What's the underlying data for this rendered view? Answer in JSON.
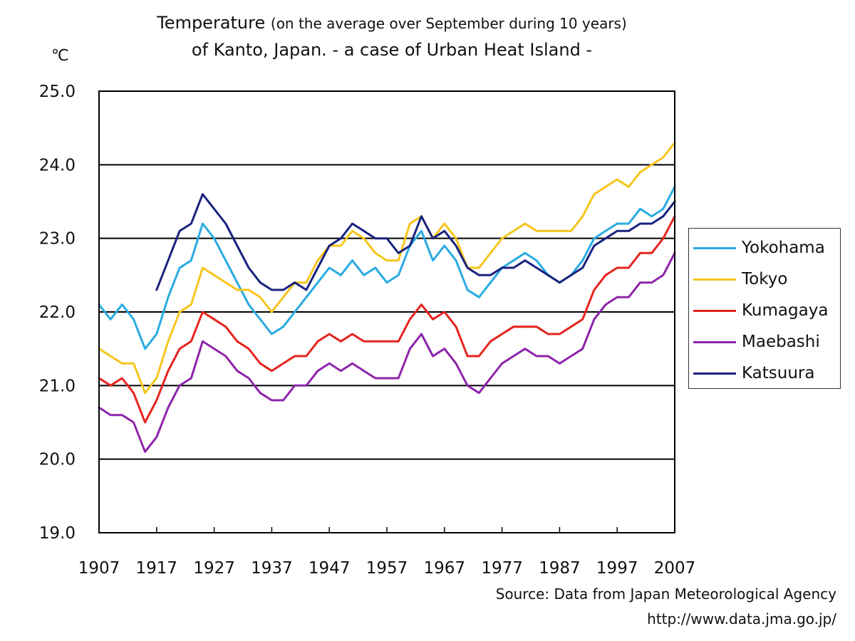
{
  "title": {
    "main": "Temperature",
    "subtitle": "(on the average over September during 10 years)",
    "line2": "of Kanto, Japan. - a case of Urban Heat Island -"
  },
  "unit_label": "℃",
  "source": {
    "line1": "Source: Data from Japan Meteorological Agency",
    "line2": "http://www.data.jma.go.jp/"
  },
  "chart_data": {
    "type": "line",
    "xlim": [
      1907,
      2007
    ],
    "ylim": [
      19.0,
      25.0
    ],
    "x_ticks": [
      1907,
      1917,
      1927,
      1937,
      1947,
      1957,
      1967,
      1977,
      1987,
      1997,
      2007
    ],
    "y_ticks": [
      "19.0",
      "20.0",
      "21.0",
      "22.0",
      "23.0",
      "24.0",
      "25.0"
    ],
    "grid": "horizontal",
    "legend_position": "right",
    "series": [
      {
        "name": "Yokohama",
        "color": "#29abe2",
        "x": [
          1907,
          1909,
          1911,
          1913,
          1915,
          1917,
          1919,
          1921,
          1923,
          1925,
          1927,
          1929,
          1931,
          1933,
          1935,
          1937,
          1939,
          1941,
          1943,
          1945,
          1947,
          1949,
          1951,
          1953,
          1955,
          1957,
          1959,
          1961,
          1963,
          1965,
          1967,
          1969,
          1971,
          1973,
          1975,
          1977,
          1979,
          1981,
          1983,
          1985,
          1987,
          1989,
          1991,
          1993,
          1995,
          1997,
          1999,
          2001,
          2003,
          2005,
          2007
        ],
        "values": [
          22.1,
          21.9,
          22.1,
          21.9,
          21.5,
          21.7,
          22.2,
          22.6,
          22.7,
          23.2,
          23.0,
          22.7,
          22.4,
          22.1,
          21.9,
          21.7,
          21.8,
          22.0,
          22.2,
          22.4,
          22.6,
          22.5,
          22.7,
          22.5,
          22.6,
          22.4,
          22.5,
          22.9,
          23.1,
          22.7,
          22.9,
          22.7,
          22.3,
          22.2,
          22.4,
          22.6,
          22.7,
          22.8,
          22.7,
          22.5,
          22.4,
          22.5,
          22.7,
          23.0,
          23.1,
          23.2,
          23.2,
          23.4,
          23.3,
          23.4,
          23.7
        ]
      },
      {
        "name": "Tokyo",
        "color": "#f6c51c",
        "x": [
          1907,
          1909,
          1911,
          1913,
          1915,
          1917,
          1919,
          1921,
          1923,
          1925,
          1927,
          1929,
          1931,
          1933,
          1935,
          1937,
          1939,
          1941,
          1943,
          1945,
          1947,
          1949,
          1951,
          1953,
          1955,
          1957,
          1959,
          1961,
          1963,
          1965,
          1967,
          1969,
          1971,
          1973,
          1975,
          1977,
          1979,
          1981,
          1983,
          1985,
          1987,
          1989,
          1991,
          1993,
          1995,
          1997,
          1999,
          2001,
          2003,
          2005,
          2007
        ],
        "values": [
          21.5,
          21.4,
          21.3,
          21.3,
          20.9,
          21.1,
          21.6,
          22.0,
          22.1,
          22.6,
          22.5,
          22.4,
          22.3,
          22.3,
          22.2,
          22.0,
          22.2,
          22.4,
          22.4,
          22.7,
          22.9,
          22.9,
          23.1,
          23.0,
          22.8,
          22.7,
          22.7,
          23.2,
          23.3,
          23.0,
          23.2,
          23.0,
          22.6,
          22.6,
          22.8,
          23.0,
          23.1,
          23.2,
          23.1,
          23.1,
          23.1,
          23.1,
          23.3,
          23.6,
          23.7,
          23.8,
          23.7,
          23.9,
          24.0,
          24.1,
          24.3
        ]
      },
      {
        "name": "Kumagaya",
        "color": "#e6231e",
        "x": [
          1907,
          1909,
          1911,
          1913,
          1915,
          1917,
          1919,
          1921,
          1923,
          1925,
          1927,
          1929,
          1931,
          1933,
          1935,
          1937,
          1939,
          1941,
          1943,
          1945,
          1947,
          1949,
          1951,
          1953,
          1955,
          1957,
          1959,
          1961,
          1963,
          1965,
          1967,
          1969,
          1971,
          1973,
          1975,
          1977,
          1979,
          1981,
          1983,
          1985,
          1987,
          1989,
          1991,
          1993,
          1995,
          1997,
          1999,
          2001,
          2003,
          2005,
          2007
        ],
        "values": [
          21.1,
          21.0,
          21.1,
          20.9,
          20.5,
          20.8,
          21.2,
          21.5,
          21.6,
          22.0,
          21.9,
          21.8,
          21.6,
          21.5,
          21.3,
          21.2,
          21.3,
          21.4,
          21.4,
          21.6,
          21.7,
          21.6,
          21.7,
          21.6,
          21.6,
          21.6,
          21.6,
          21.9,
          22.1,
          21.9,
          22.0,
          21.8,
          21.4,
          21.4,
          21.6,
          21.7,
          21.8,
          21.8,
          21.8,
          21.7,
          21.7,
          21.8,
          21.9,
          22.3,
          22.5,
          22.6,
          22.6,
          22.8,
          22.8,
          23.0,
          23.3
        ]
      },
      {
        "name": "Maebashi",
        "color": "#8e24aa",
        "x": [
          1907,
          1909,
          1911,
          1913,
          1915,
          1917,
          1919,
          1921,
          1923,
          1925,
          1927,
          1929,
          1931,
          1933,
          1935,
          1937,
          1939,
          1941,
          1943,
          1945,
          1947,
          1949,
          1951,
          1953,
          1955,
          1957,
          1959,
          1961,
          1963,
          1965,
          1967,
          1969,
          1971,
          1973,
          1975,
          1977,
          1979,
          1981,
          1983,
          1985,
          1987,
          1989,
          1991,
          1993,
          1995,
          1997,
          1999,
          2001,
          2003,
          2005,
          2007
        ],
        "values": [
          20.7,
          20.6,
          20.6,
          20.5,
          20.1,
          20.3,
          20.7,
          21.0,
          21.1,
          21.6,
          21.5,
          21.4,
          21.2,
          21.1,
          20.9,
          20.8,
          20.8,
          21.0,
          21.0,
          21.2,
          21.3,
          21.2,
          21.3,
          21.2,
          21.1,
          21.1,
          21.1,
          21.5,
          21.7,
          21.4,
          21.5,
          21.3,
          21.0,
          20.9,
          21.1,
          21.3,
          21.4,
          21.5,
          21.4,
          21.4,
          21.3,
          21.4,
          21.5,
          21.9,
          22.1,
          22.2,
          22.2,
          22.4,
          22.4,
          22.5,
          22.8
        ]
      },
      {
        "name": "Katsuura",
        "color": "#1a237e",
        "x": [
          1917,
          1919,
          1921,
          1923,
          1925,
          1927,
          1929,
          1931,
          1933,
          1935,
          1937,
          1939,
          1941,
          1943,
          1945,
          1947,
          1949,
          1951,
          1953,
          1955,
          1957,
          1959,
          1961,
          1963,
          1965,
          1967,
          1969,
          1971,
          1973,
          1975,
          1977,
          1979,
          1981,
          1983,
          1985,
          1987,
          1989,
          1991,
          1993,
          1995,
          1997,
          1999,
          2001,
          2003,
          2005,
          2007
        ],
        "values": [
          22.3,
          22.7,
          23.1,
          23.2,
          23.6,
          23.4,
          23.2,
          22.9,
          22.6,
          22.4,
          22.3,
          22.3,
          22.4,
          22.3,
          22.6,
          22.9,
          23.0,
          23.2,
          23.1,
          23.0,
          23.0,
          22.8,
          22.9,
          23.3,
          23.0,
          23.1,
          22.9,
          22.6,
          22.5,
          22.5,
          22.6,
          22.6,
          22.7,
          22.6,
          22.5,
          22.4,
          22.5,
          22.6,
          22.9,
          23.0,
          23.1,
          23.1,
          23.2,
          23.2,
          23.3,
          23.5
        ]
      }
    ]
  }
}
